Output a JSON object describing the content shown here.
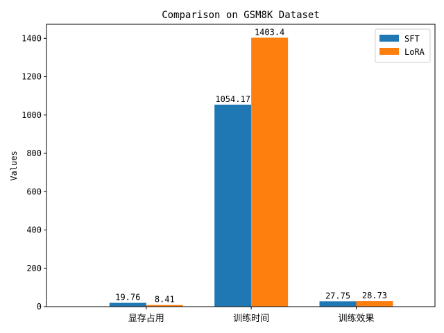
{
  "chart_data": {
    "type": "bar",
    "title": "Comparison on GSM8K Dataset",
    "xlabel": "",
    "ylabel": "Values",
    "categories": [
      "显存占用",
      "训练时间",
      "训练效果"
    ],
    "series": [
      {
        "name": "SFT",
        "values": [
          19.76,
          1054.17,
          27.75
        ],
        "labels": [
          "19.76",
          "1054.17",
          "27.75"
        ],
        "color": "#1f77b4"
      },
      {
        "name": "LoRA",
        "values": [
          8.41,
          1403.4,
          28.73
        ],
        "labels": [
          "8.41",
          "1403.4",
          "28.73"
        ],
        "color": "#ff7f0e"
      }
    ],
    "ylim": [
      0,
      1473.57
    ],
    "yticks": [
      0,
      200,
      400,
      600,
      800,
      1000,
      1200,
      1400
    ],
    "grid": false,
    "legend": "top-right"
  }
}
